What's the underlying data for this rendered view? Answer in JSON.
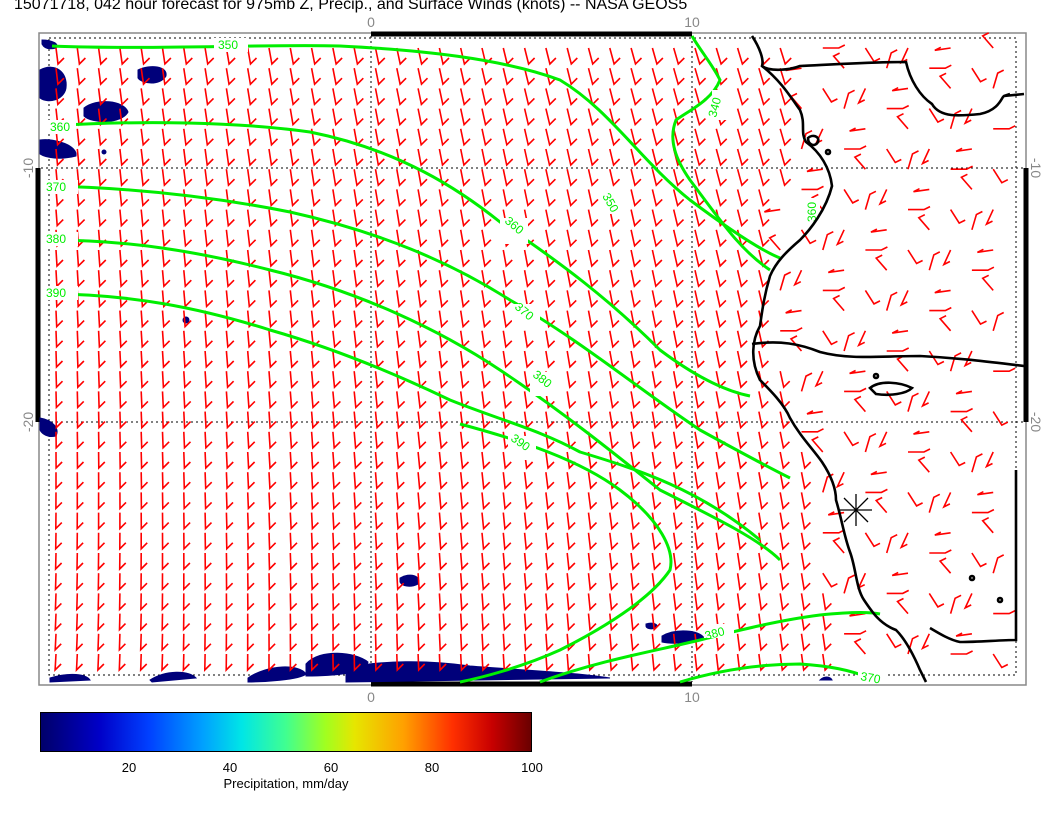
{
  "title": "15071718, 042 hour forecast for 975mb Z, Precip., and Surface Winds (knots) -- NASA GEOS5",
  "axes": {
    "top_labels": [
      "0",
      "10"
    ],
    "bottom_labels": [
      "0",
      "10"
    ],
    "left_labels": [
      "-10",
      "-20"
    ],
    "right_labels": [
      "-10",
      "-20"
    ]
  },
  "contours": {
    "color": "#00ee00",
    "labels": [
      "350",
      "360",
      "370",
      "380",
      "390",
      "340",
      "350",
      "360",
      "370",
      "380",
      "390",
      "380",
      "370",
      "360"
    ]
  },
  "wind_barb_color": "#ff0000",
  "precip_color": "#00007a",
  "colorbar": {
    "ticks": [
      "20",
      "40",
      "60",
      "80",
      "100"
    ],
    "label": "Precipitation, mm/day"
  }
}
